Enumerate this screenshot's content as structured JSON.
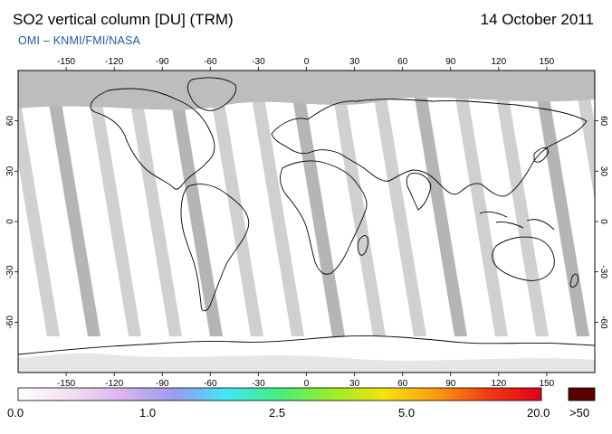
{
  "header": {
    "title": "SO2 vertical column [DU] (TRM)",
    "date": "14 October 2011",
    "credit": "OMI  –  KNMI/FMI/NASA"
  },
  "map": {
    "lon_ticks": [
      "-150",
      "-120",
      "-90",
      "-60",
      "-30",
      "0",
      "30",
      "60",
      "90",
      "120",
      "150"
    ],
    "lat_ticks": [
      "60",
      "30",
      "0",
      "-30",
      "-60"
    ],
    "colors": {
      "ocean": "#ffffff",
      "no_data": "#c8c8c8",
      "swath_dark": "#a8a8a8",
      "polar_gap": "#bdbdbd",
      "coastline": "#000000"
    }
  },
  "colorbar": {
    "labels": [
      "0.0",
      "1.0",
      "2.5",
      "5.0",
      "20.0"
    ],
    "overflow_label": ">50",
    "overflow_color": "#5a0000",
    "gradient": [
      "#ffffff",
      "#f3dff3",
      "#d9b4ee",
      "#9b9bf0",
      "#3ee8f5",
      "#46ee7a",
      "#9bee2a",
      "#f4e30c",
      "#fb9a10",
      "#f23812",
      "#e0001a"
    ]
  }
}
